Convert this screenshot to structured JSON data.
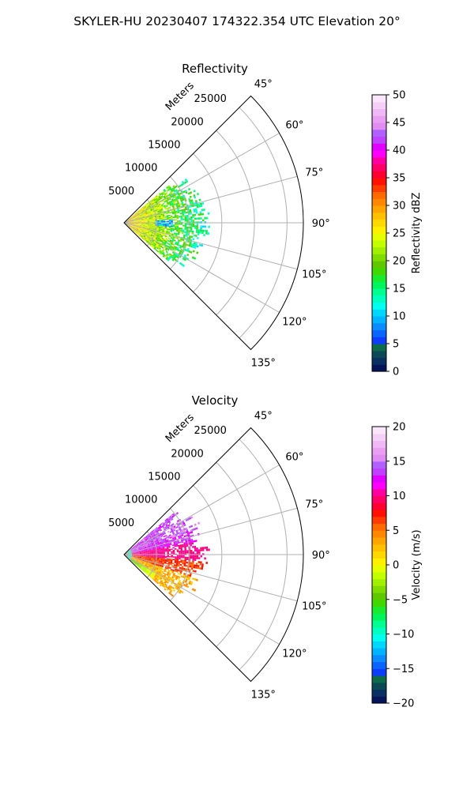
{
  "suptitle": "SKYLER-HU  20230407  174322.354 UTC Elevation 20°",
  "chart_data": [
    {
      "type": "polar-sector",
      "title": "Reflectivity",
      "radial_label": "Meters",
      "azimuth_range_deg": [
        45,
        135
      ],
      "theta_ticks": [
        "45°",
        "60°",
        "75°",
        "90°",
        "105°",
        "120°",
        "135°"
      ],
      "radial_ticks": [
        5000,
        10000,
        15000,
        20000,
        25000
      ],
      "rmax_m": 27500,
      "grid": true,
      "colorbar": {
        "label": "Reflectivity dBZ",
        "range": [
          0,
          50
        ],
        "ticks": [
          "0",
          "5",
          "10",
          "15",
          "20",
          "25",
          "30",
          "35",
          "40",
          "45",
          "50"
        ],
        "colors": [
          "#06155a",
          "#0a2f62",
          "#0b4a55",
          "#0d6a4a",
          "#0d3cff",
          "#0a64ff",
          "#0a8cff",
          "#00b4ff",
          "#00d7ff",
          "#00ffee",
          "#00ffc0",
          "#00ff90",
          "#00f55c",
          "#1aea2e",
          "#40d800",
          "#60c800",
          "#80dc00",
          "#a0f000",
          "#c4ff00",
          "#e6ff00",
          "#fff000",
          "#ffd800",
          "#ffc000",
          "#ffa500",
          "#ff8800",
          "#ff6a00",
          "#ff3c00",
          "#ff1000",
          "#ff0030",
          "#ff0066",
          "#ff00a0",
          "#ff00ff",
          "#e000ff",
          "#c040ff",
          "#b060ff",
          "#e08cf0",
          "#eaa0f2",
          "#f0b8f4",
          "#f5d0f6",
          "#fae6fb"
        ]
      },
      "echo_description": "Mostly 15-30 dBZ near radar, 10-18 dBZ at outer edges, extending to roughly 12000 m between azimuths 50° and 120°"
    },
    {
      "type": "polar-sector",
      "title": "Velocity",
      "radial_label": "Meters",
      "azimuth_range_deg": [
        45,
        135
      ],
      "theta_ticks": [
        "45°",
        "60°",
        "75°",
        "90°",
        "105°",
        "120°",
        "135°"
      ],
      "radial_ticks": [
        5000,
        10000,
        15000,
        20000,
        25000
      ],
      "rmax_m": 27500,
      "grid": true,
      "colorbar": {
        "label": "Velocity (m/s)",
        "range": [
          -20,
          20
        ],
        "ticks": [
          "−20",
          "−15",
          "−10",
          "−5",
          "0",
          "5",
          "10",
          "15",
          "20"
        ],
        "colors": [
          "#06155a",
          "#0a2f62",
          "#0b4a55",
          "#0d6a4a",
          "#0d3cff",
          "#0a64ff",
          "#0a8cff",
          "#00b4ff",
          "#00d7ff",
          "#00ffee",
          "#00ffc0",
          "#00ff90",
          "#00f55c",
          "#1aea2e",
          "#40d800",
          "#60c800",
          "#80dc00",
          "#a0f000",
          "#c4ff00",
          "#e6ff00",
          "#fff000",
          "#ffd800",
          "#ffc000",
          "#ffa500",
          "#ff8800",
          "#ff6a00",
          "#ff3c00",
          "#ff1000",
          "#ff0030",
          "#ff0066",
          "#ff00a0",
          "#ff00ff",
          "#e000ff",
          "#c040ff",
          "#b060ff",
          "#e08cf0",
          "#eaa0f2",
          "#f0b8f4",
          "#f5d0f6",
          "#fae6fb"
        ]
      },
      "echo_description": "Magenta/purple (about +12 to +15 m/s) at azimuths 50-80°, red (+10) near 90°, orange/yellow (0 to +7) at 95-115°, cyan/green near radar along 120-135° edge"
    }
  ]
}
